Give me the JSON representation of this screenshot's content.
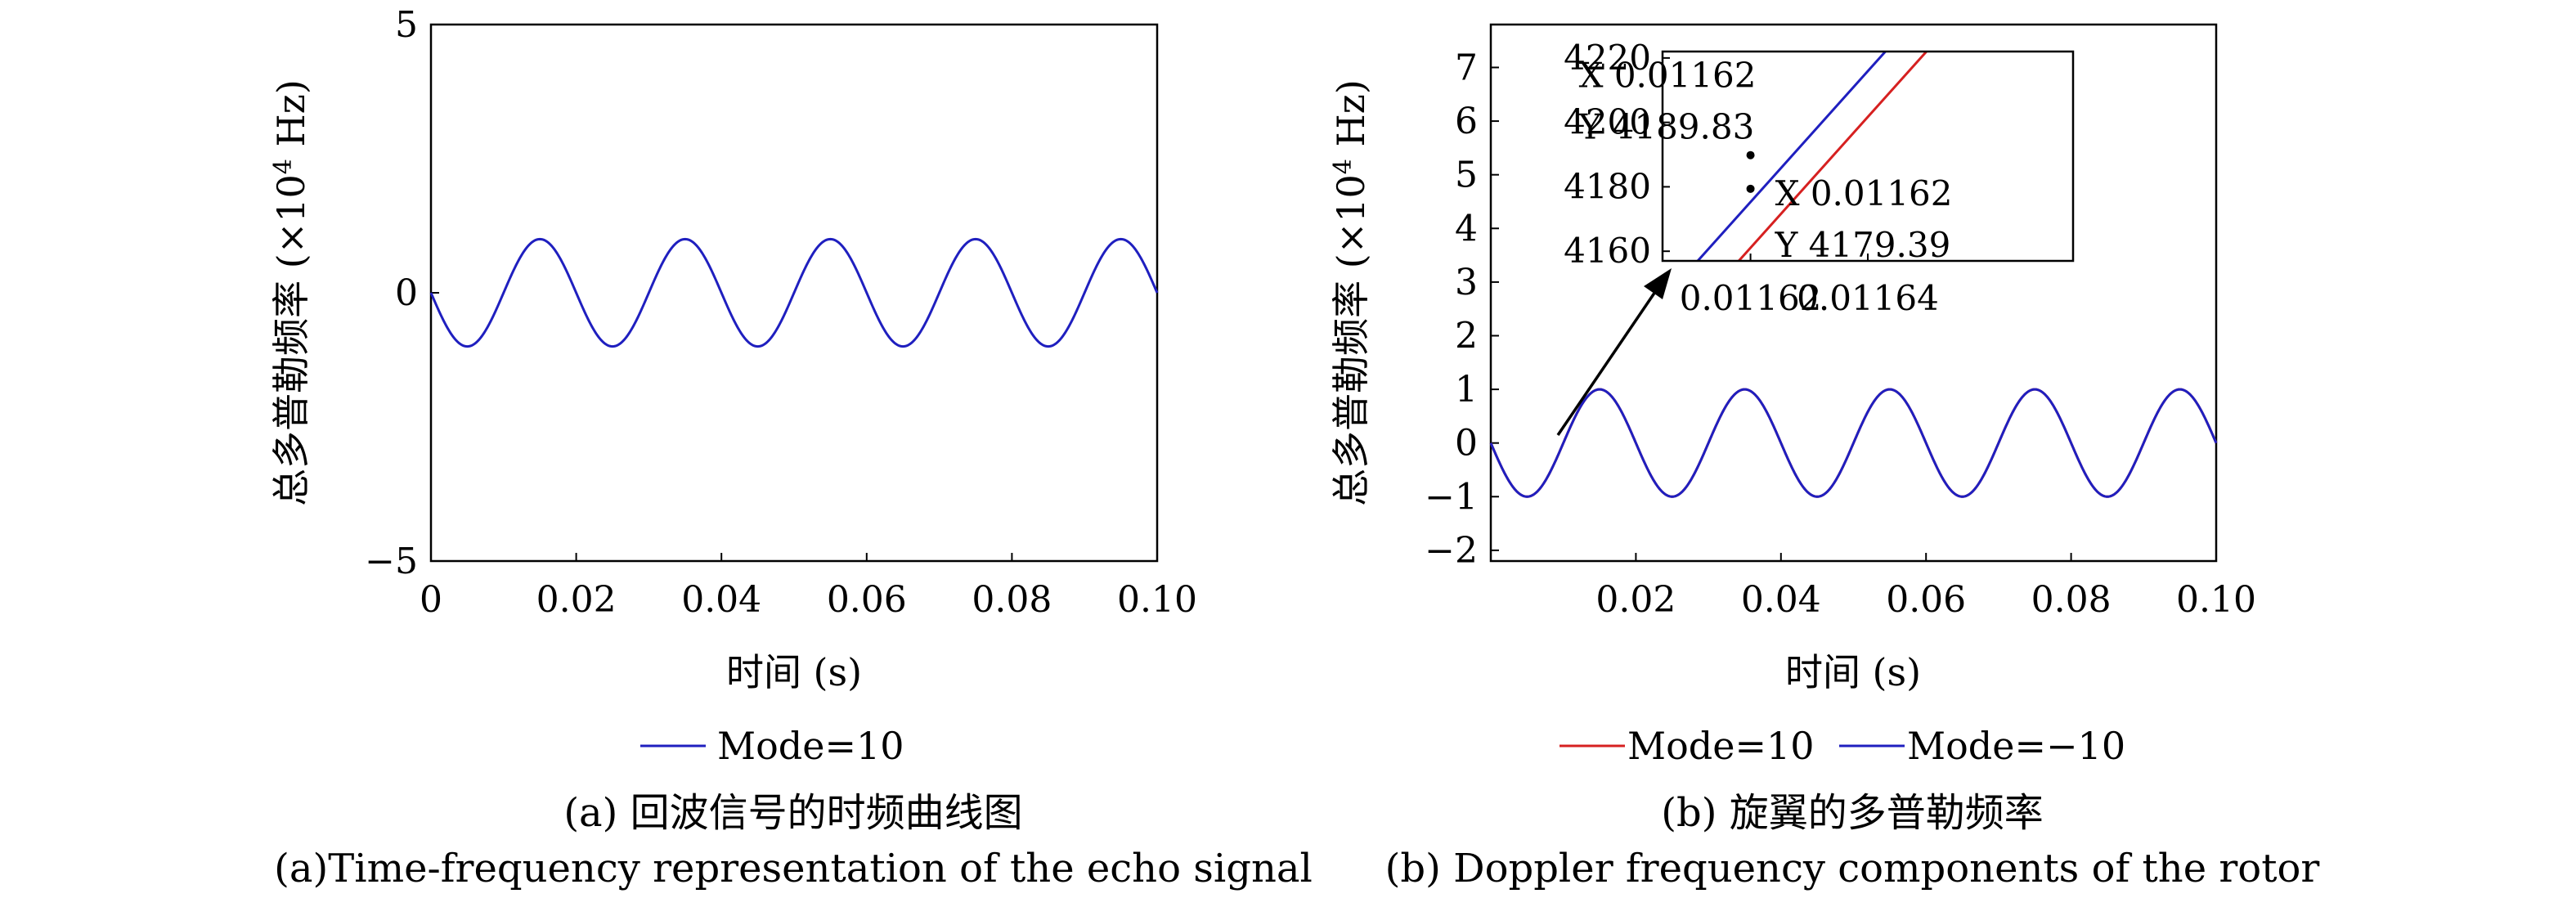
{
  "chart_data": [
    {
      "type": "line",
      "panel": "(a)",
      "xlabel": "时间 (s)",
      "ylabel": "总多普勒频率 (×10",
      "ylabel_sup": "4",
      "ylabel_unit": " Hz)",
      "xlim": [
        0,
        0.1
      ],
      "ylim": [
        -5,
        5
      ],
      "x_ticks": [
        0,
        0.02,
        0.04,
        0.06,
        0.08,
        0.1
      ],
      "x_tick_labels": [
        "0",
        "0.02",
        "0.04",
        "0.06",
        "0.08",
        "0.10"
      ],
      "y_ticks": [
        -5,
        0,
        5
      ],
      "y_tick_labels": [
        "−5",
        "0",
        "5"
      ],
      "series": [
        {
          "name": "Mode=10",
          "color": "#1f1fbf",
          "amplitude": 1,
          "frequency_hz": 50,
          "sign": -1
        }
      ],
      "caption_cn": "(a) 回波信号的时频曲线图",
      "caption_en": "(a)Time-frequency representation of the echo signal"
    },
    {
      "type": "line",
      "panel": "(b)",
      "xlabel": "时间 (s)",
      "ylabel": "总多普勒频率 (×10",
      "ylabel_sup": "4",
      "ylabel_unit": " Hz)",
      "xlim": [
        0,
        0.1
      ],
      "ylim": [
        -2.2,
        7.8
      ],
      "x_ticks": [
        0.02,
        0.04,
        0.06,
        0.08,
        0.1
      ],
      "x_tick_labels": [
        "0.02",
        "0.04",
        "0.06",
        "0.08",
        "0.10"
      ],
      "y_ticks": [
        -2,
        -1,
        0,
        1,
        2,
        3,
        4,
        5,
        6,
        7
      ],
      "y_tick_labels": [
        "−2",
        "−1",
        "0",
        "1",
        "2",
        "3",
        "4",
        "5",
        "6",
        "7"
      ],
      "series": [
        {
          "name": "Mode=10",
          "color": "#d62020",
          "amplitude": 1,
          "frequency_hz": 50,
          "sign": -1
        },
        {
          "name": "Mode=−10",
          "color": "#1f1fbf",
          "amplitude": 1,
          "frequency_hz": 50,
          "sign": -1
        }
      ],
      "inset": {
        "xlim": [
          0.011605,
          0.011675
        ],
        "ylim": [
          4157,
          4222
        ],
        "x_ticks": [
          0.01162,
          0.01164
        ],
        "x_tick_labels": [
          "0.01162",
          "0.01164"
        ],
        "y_ticks": [
          4160,
          4180,
          4200,
          4220
        ],
        "y_tick_labels": [
          "4160",
          "4180",
          "4200",
          "4220"
        ],
        "lines": [
          {
            "name": "Mode=−10",
            "color": "#1f1fbf",
            "x": [
              0.011611,
              0.011643
            ],
            "y": [
              4157,
              4222
            ]
          },
          {
            "name": "Mode=10",
            "color": "#d62020",
            "x": [
              0.011618,
              0.01165
            ],
            "y": [
              4157,
              4222
            ]
          }
        ],
        "datatips": [
          {
            "x": 0.01162,
            "y": 4189.83,
            "x_label": "X 0.01162",
            "y_label": "Y 4189.83"
          },
          {
            "x": 0.01162,
            "y": 4179.39,
            "x_label": "X 0.01162",
            "y_label": "Y 4179.39"
          }
        ]
      },
      "caption_cn": "(b) 旋翼的多普勒频率",
      "caption_en": "(b) Doppler frequency components of the rotor"
    }
  ]
}
